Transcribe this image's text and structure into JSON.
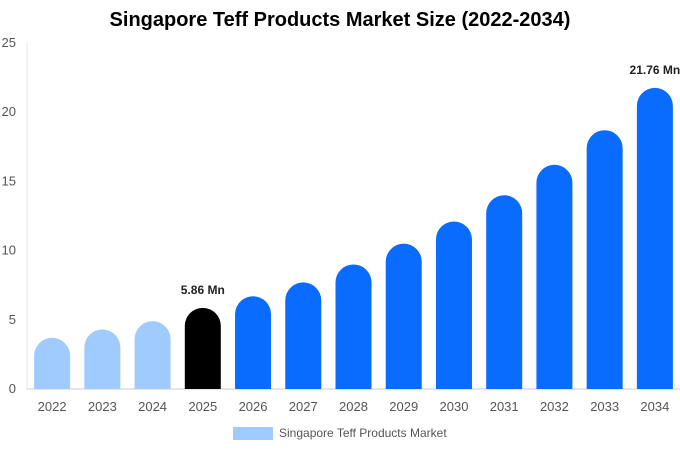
{
  "chart_data": {
    "type": "bar",
    "title": "Singapore Teff Products Market Size (2022-2034)",
    "xlabel": "",
    "ylabel": "",
    "ylim": [
      0,
      25
    ],
    "yticks": [
      0,
      5,
      10,
      15,
      20,
      25
    ],
    "grid": false,
    "legend_position": "bottom",
    "categories": [
      "2022",
      "2023",
      "2024",
      "2025",
      "2026",
      "2027",
      "2028",
      "2029",
      "2030",
      "2031",
      "2032",
      "2033",
      "2034"
    ],
    "series": [
      {
        "name": "Singapore Teff Products Market",
        "values": [
          3.7,
          4.3,
          4.9,
          5.86,
          6.7,
          7.7,
          9.0,
          10.5,
          12.1,
          14.0,
          16.2,
          18.7,
          21.76
        ]
      }
    ],
    "bar_colors": [
      "#a0cbff",
      "#a0cbff",
      "#a0cbff",
      "#000000",
      "#0a6cff",
      "#0a6cff",
      "#0a6cff",
      "#0a6cff",
      "#0a6cff",
      "#0a6cff",
      "#0a6cff",
      "#0a6cff",
      "#0a6cff"
    ],
    "legend_color": "#a0cbff",
    "annotations": [
      {
        "category": "2025",
        "text": "5.86 Mn"
      },
      {
        "category": "2034",
        "text": "21.76 Mn"
      }
    ]
  }
}
